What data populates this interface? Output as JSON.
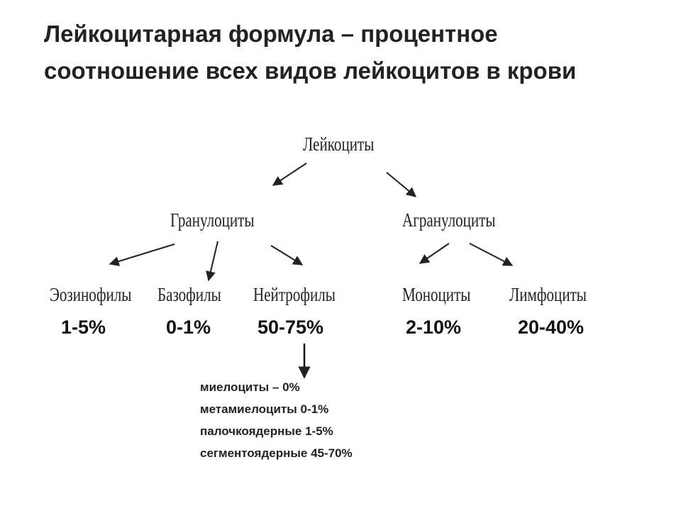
{
  "title": {
    "line1": "Лейкоцитарная формула – процентное",
    "line2": "соотношение всех видов лейкоцитов в крови"
  },
  "tree": {
    "root": "Лейкоциты",
    "groups": {
      "granulocytes": "Гранулоциты",
      "agranulocytes": "Агранулоциты"
    },
    "cells": [
      {
        "name": "Эозинофилы",
        "percent": "1-5%"
      },
      {
        "name": "Базофилы",
        "percent": "0-1%"
      },
      {
        "name": "Нейтрофилы",
        "percent": "50-75%"
      },
      {
        "name": "Моноциты",
        "percent": "2-10%"
      },
      {
        "name": "Лимфоциты",
        "percent": "20-40%"
      }
    ]
  },
  "neutrophil_subtypes": [
    "миелоциты – 0%",
    "метамиелоциты 0-1%",
    "палочкоядерные 1-5%",
    "сегментоядерные 45-70%"
  ]
}
